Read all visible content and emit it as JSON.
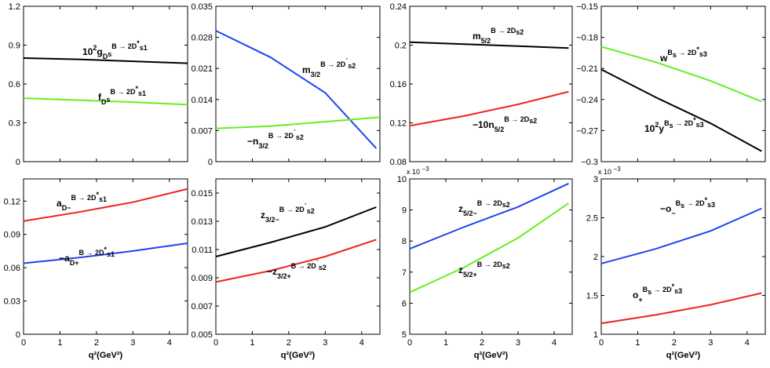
{
  "figure": {
    "x_axis_label": "q²(GeV²)"
  },
  "chart_data": [
    {
      "id": "p1",
      "type": "line",
      "xlim": [
        0,
        4.5
      ],
      "ylim": [
        0,
        1.2
      ],
      "yticks": [
        "0",
        "0.3",
        "0.6",
        "0.9",
        "1.2"
      ],
      "xticks": [],
      "series": [
        {
          "name": "10²g_Ds^{Bs->2D*s1}",
          "color": "#000000",
          "x": [
            0,
            1.5,
            3,
            4.5
          ],
          "y": [
            0.8,
            0.79,
            0.775,
            0.76
          ]
        },
        {
          "name": "f_Ds^{Bs->2D*s1}",
          "color": "#66ee22",
          "x": [
            0,
            1.5,
            3,
            4.5
          ],
          "y": [
            0.49,
            0.475,
            0.46,
            0.44
          ]
        }
      ],
      "annotations": [
        {
          "pre": "10",
          "sup_pre": "2",
          "main": "g",
          "sub": "D",
          "sub2": "s",
          "sup": "B → 2D",
          "star": "*",
          "tail": "s1"
        },
        {
          "pre": "",
          "sup_pre": "",
          "main": "f",
          "sub": "D",
          "sub2": "s",
          "sup": "B → 2D",
          "star": "*",
          "tail": "s1"
        }
      ]
    },
    {
      "id": "p2",
      "type": "line",
      "xlim": [
        0,
        4.5
      ],
      "ylim": [
        0,
        0.035
      ],
      "yticks": [
        "0",
        "0.007",
        "0.014",
        "0.021",
        "0.028",
        "0.035"
      ],
      "xticks": [],
      "series": [
        {
          "name": "m_3/2^{Bs->2D's2}",
          "color": "#2244ee",
          "x": [
            0,
            1.5,
            3,
            4.4
          ],
          "y": [
            0.0295,
            0.0235,
            0.0155,
            0.003
          ]
        },
        {
          "name": "-n_3/2^{Bs->2D's2}",
          "color": "#66ee22",
          "x": [
            0,
            1.5,
            3,
            4.5
          ],
          "y": [
            0.0075,
            0.008,
            0.009,
            0.01
          ]
        }
      ],
      "annotations": [
        {
          "pre": "",
          "main": "m",
          "sub": "3/2",
          "sup": "B → 2D",
          "star": "´",
          "tail": "s2"
        },
        {
          "pre": "−",
          "main": "n",
          "sub": "3/2",
          "sup": "B → 2D",
          "star": "´",
          "tail": "s2"
        }
      ]
    },
    {
      "id": "p3",
      "type": "line",
      "xlim": [
        0,
        4.5
      ],
      "ylim": [
        0.08,
        0.24
      ],
      "yticks": [
        "0.08",
        "0.12",
        "0.16",
        "0.2",
        "0.24"
      ],
      "xticks": [],
      "series": [
        {
          "name": "m_5/2^{Bs->2Ds2}",
          "color": "#000000",
          "x": [
            0,
            1.5,
            3,
            4.4
          ],
          "y": [
            0.203,
            0.201,
            0.199,
            0.197
          ]
        },
        {
          "name": "-10n_5/2^{Bs->2Ds2}",
          "color": "#ee2222",
          "x": [
            0,
            1.5,
            3,
            4.4
          ],
          "y": [
            0.117,
            0.127,
            0.139,
            0.152
          ]
        }
      ],
      "annotations": [
        {
          "pre": "",
          "main": "m",
          "sub": "5/2",
          "sup": "B → 2D",
          "star": "",
          "tail": "s2"
        },
        {
          "pre": "−10",
          "main": "n",
          "sub": "5/2",
          "sup": "B → 2D",
          "star": "",
          "tail": "s2"
        }
      ]
    },
    {
      "id": "p4",
      "type": "line",
      "xlim": [
        0,
        4.5
      ],
      "ylim": [
        -0.3,
        -0.15
      ],
      "yticks": [
        "−0.3",
        "−0.27",
        "−0.24",
        "−0.21",
        "−0.18",
        "−0.15"
      ],
      "xticks": [],
      "series": [
        {
          "name": "w^{Bs->2D*s3}",
          "color": "#66ee22",
          "x": [
            0,
            1.5,
            3,
            4.4
          ],
          "y": [
            -0.189,
            -0.204,
            -0.222,
            -0.242
          ]
        },
        {
          "name": "10²y^{Bs->2D*s3}",
          "color": "#000000",
          "x": [
            0,
            1.5,
            3,
            4.4
          ],
          "y": [
            -0.211,
            -0.238,
            -0.263,
            -0.29
          ]
        }
      ],
      "annotations": [
        {
          "pre": "",
          "main": "w",
          "sup": "B",
          "supsub": "s",
          "sup2": " → 2D",
          "star": "*",
          "tail": "s3"
        },
        {
          "pre": "10",
          "sup_pre": "2",
          "main": "y",
          "sup": "B",
          "supsub": "s",
          "sup2": " → 2D",
          "star": "*",
          "tail": "s3"
        }
      ]
    },
    {
      "id": "p5",
      "type": "line",
      "xlim": [
        0,
        4.5
      ],
      "ylim": [
        0,
        0.14
      ],
      "yticks": [
        "0",
        "0.03",
        "0.06",
        "0.09",
        "0.12"
      ],
      "xticks": [
        "0",
        "1",
        "2",
        "3",
        "4"
      ],
      "series": [
        {
          "name": "a_D-^{Bs->2D*s1}",
          "color": "#ee2222",
          "x": [
            0,
            1.5,
            3,
            4.5
          ],
          "y": [
            0.102,
            0.11,
            0.119,
            0.131
          ]
        },
        {
          "name": "-a_D+^{Bs->2D*s1}",
          "color": "#2244ee",
          "x": [
            0,
            1.5,
            3,
            4.5
          ],
          "y": [
            0.064,
            0.069,
            0.075,
            0.082
          ]
        }
      ],
      "annotations": [
        {
          "pre": "",
          "main": "a",
          "sub": "D−",
          "sup": "B → 2D",
          "star": "*",
          "tail": "s1"
        },
        {
          "pre": "−",
          "main": "a",
          "sub": "D+",
          "sup": "B → 2D",
          "star": "*",
          "tail": "s1"
        }
      ]
    },
    {
      "id": "p6",
      "type": "line",
      "xlim": [
        0,
        4.5
      ],
      "ylim": [
        0.005,
        0.016
      ],
      "yticks": [
        "0.005",
        "0.007",
        "0.009",
        "0.011",
        "0.013",
        "0.015"
      ],
      "xticks": [
        "0",
        "1",
        "2",
        "3",
        "4"
      ],
      "series": [
        {
          "name": "z_3/2-^{Bs->2D's2}",
          "color": "#000000",
          "x": [
            0,
            1.5,
            3,
            4.4
          ],
          "y": [
            0.0105,
            0.0115,
            0.0126,
            0.014
          ]
        },
        {
          "name": "-z_3/2+^{Bs->2D's2}",
          "color": "#ee2222",
          "x": [
            0,
            1.5,
            3,
            4.4
          ],
          "y": [
            0.0087,
            0.0095,
            0.0105,
            0.0117
          ]
        }
      ],
      "annotations": [
        {
          "pre": "",
          "main": "z",
          "sub": "3/2−",
          "sup": "B → 2D",
          "star": "´",
          "tail": "s2"
        },
        {
          "pre": "−",
          "main": "z",
          "sub": "3/2+",
          "sup": "B → 2D",
          "star": "´",
          "tail": "s2"
        }
      ]
    },
    {
      "id": "p7",
      "type": "line",
      "xlim": [
        0,
        4.5
      ],
      "ylim": [
        5,
        10
      ],
      "multiplier": "x 10",
      "multiplier_exp": "−3",
      "yticks": [
        "5",
        "6",
        "7",
        "8",
        "9",
        "10"
      ],
      "xticks": [
        "0",
        "1",
        "2",
        "3",
        "4"
      ],
      "series": [
        {
          "name": "z_5/2-^{Bs->2Ds2}",
          "color": "#2244ee",
          "x": [
            0,
            1.5,
            3,
            4.4
          ],
          "y": [
            7.75,
            8.45,
            9.1,
            9.85
          ]
        },
        {
          "name": "z_5/2+^{Bs->2Ds2}",
          "color": "#66ee22",
          "x": [
            0,
            1.5,
            3,
            4.4
          ],
          "y": [
            6.35,
            7.15,
            8.1,
            9.22
          ]
        }
      ],
      "annotations": [
        {
          "pre": "",
          "main": "z",
          "sub": "5/2−",
          "sup": "B → 2D",
          "star": "",
          "tail": "s2"
        },
        {
          "pre": "",
          "main": "z",
          "sub": "5/2+",
          "sup": "B → 2D",
          "star": "",
          "tail": "s2"
        }
      ]
    },
    {
      "id": "p8",
      "type": "line",
      "xlim": [
        0,
        4.5
      ],
      "ylim": [
        1,
        3
      ],
      "multiplier": "x 10",
      "multiplier_exp": "−3",
      "yticks": [
        "1",
        "1.5",
        "2",
        "2.5",
        "3"
      ],
      "xticks": [
        "0",
        "1",
        "2",
        "3",
        "4"
      ],
      "series": [
        {
          "name": "-o_-^{Bs->2D*s3}",
          "color": "#2244ee",
          "x": [
            0,
            1.5,
            3,
            4.4
          ],
          "y": [
            1.91,
            2.1,
            2.33,
            2.62
          ]
        },
        {
          "name": "o_+^{Bs->2D*s3}",
          "color": "#ee2222",
          "x": [
            0,
            1.5,
            3,
            4.4
          ],
          "y": [
            1.14,
            1.25,
            1.38,
            1.53
          ]
        }
      ],
      "annotations": [
        {
          "pre": "−",
          "main": "o",
          "sub": "−",
          "sup": "B",
          "supsub": "s",
          "sup2": " → 2D",
          "star": "*",
          "tail": "s3"
        },
        {
          "pre": "",
          "main": "o",
          "sub": "+",
          "sup": "B",
          "supsub": "s",
          "sup2": " → 2D",
          "star": "*",
          "tail": "s3"
        }
      ]
    }
  ]
}
